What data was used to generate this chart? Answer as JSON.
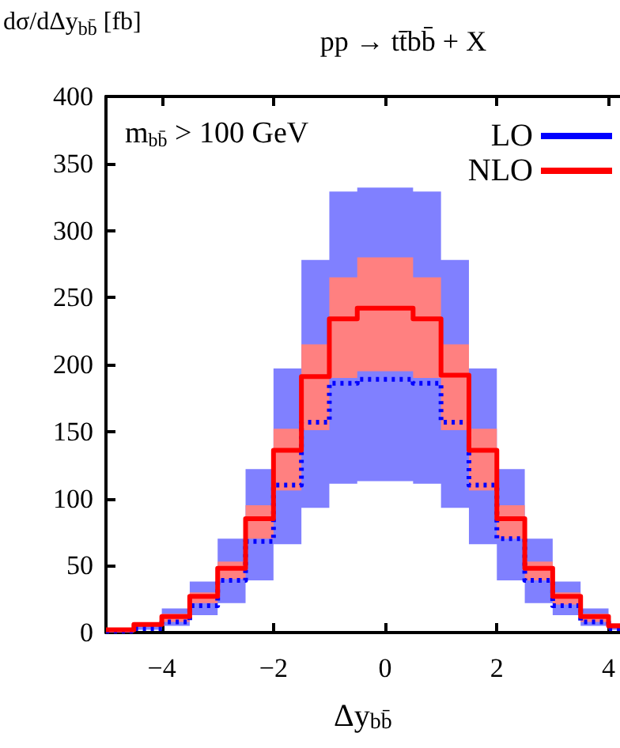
{
  "chart_data": {
    "type": "step",
    "title": "pp → tt̄bb̄ + X",
    "ylabel": "dσ/dΔy$_{bb̄}$ [fb]",
    "xlabel": "Δy$_{bb̄}$",
    "annotations": [
      "m$_{bb̄}$ > 100 GeV"
    ],
    "x": [
      -5,
      -4.5,
      -4,
      -3.5,
      -3,
      -2.5,
      -2,
      -1.5,
      -1,
      -0.5,
      0,
      0.5,
      1,
      1.5,
      2,
      2.5,
      3,
      3.5,
      4
    ],
    "series": [
      {
        "name": "LO",
        "color": "#0000ff",
        "line_style": "dotted",
        "values": [
          1,
          3,
          8,
          20,
          39,
          68,
          110,
          157,
          186,
          189,
          189,
          186,
          157,
          110,
          70,
          39,
          20,
          8,
          3
        ],
        "lower": [
          0,
          2,
          5,
          13,
          22,
          39,
          66,
          93,
          111,
          113,
          113,
          111,
          93,
          66,
          39,
          22,
          13,
          5,
          2
        ],
        "upper": [
          2,
          7,
          18,
          38,
          70,
          122,
          197,
          278,
          329,
          332,
          332,
          329,
          278,
          197,
          122,
          70,
          38,
          18,
          6
        ]
      },
      {
        "name": "NLO",
        "color": "#ff0000",
        "line_style": "solid",
        "values": [
          2,
          6,
          12,
          27,
          48,
          85,
          136,
          191,
          234,
          242,
          242,
          234,
          192,
          136,
          85,
          48,
          27,
          12,
          5
        ],
        "lower": [
          1,
          5,
          8,
          22,
          40,
          70,
          106,
          151,
          190,
          195,
          195,
          190,
          151,
          106,
          70,
          39,
          21,
          8,
          4
        ],
        "upper": [
          3,
          7,
          14,
          30,
          53,
          95,
          152,
          215,
          265,
          280,
          280,
          265,
          215,
          152,
          95,
          53,
          30,
          14,
          7
        ]
      }
    ],
    "xlim": [
      -5,
      4.2
    ],
    "xticks": [
      -4,
      -2,
      0,
      2,
      4
    ],
    "ylim": [
      0,
      400
    ],
    "yticks": [
      0,
      50,
      100,
      150,
      200,
      250,
      300,
      350,
      400
    ],
    "grid": false,
    "legend": "top right",
    "marker": "none"
  }
}
